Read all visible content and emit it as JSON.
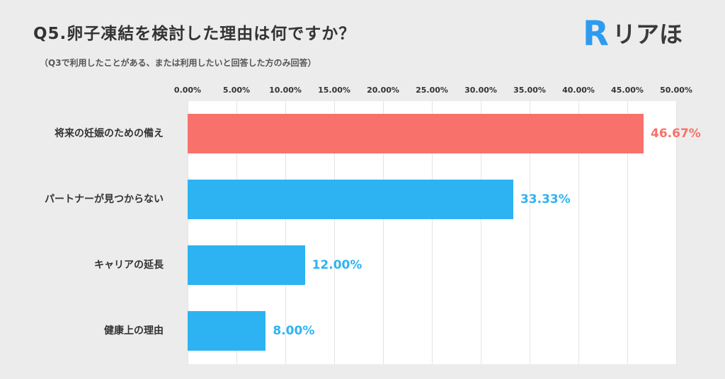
{
  "header": {
    "title": "Q5.卵子凍結を検討した理由は何ですか？",
    "subtitle": "（Q3で利用したことがある、または利用したいと回答した方のみ回答）",
    "logo": {
      "mark": "R",
      "text": "リアほ"
    }
  },
  "colors": {
    "background": "#ececec",
    "plot_background": "#ffffff",
    "gridline": "#e4e4e4",
    "accent_red": "#f8716b",
    "accent_blue": "#2db3f2",
    "logo_blue": "#2d9bf0",
    "text_dark": "#333333"
  },
  "chart_data": {
    "type": "bar",
    "orientation": "horizontal",
    "title": "Q5.卵子凍結を検討した理由は何ですか？",
    "categories": [
      "将来の妊娠のための備え",
      "パートナーが見つからない",
      "キャリアの延長",
      "健康上の理由"
    ],
    "values": [
      46.67,
      33.33,
      12.0,
      8.0
    ],
    "value_labels": [
      "46.67%",
      "33.33%",
      "12.00%",
      "8.00%"
    ],
    "bar_colors": [
      "#f8716b",
      "#2db3f2",
      "#2db3f2",
      "#2db3f2"
    ],
    "x_ticks": [
      "0.00%",
      "5.00%",
      "10.00%",
      "15.00%",
      "20.00%",
      "25.00%",
      "30.00%",
      "35.00%",
      "40.00%",
      "45.00%",
      "50.00%"
    ],
    "tick_values": [
      0,
      5,
      10,
      15,
      20,
      25,
      30,
      35,
      40,
      45,
      50
    ],
    "xlim": [
      0,
      50
    ],
    "grid": true,
    "legend": false
  }
}
